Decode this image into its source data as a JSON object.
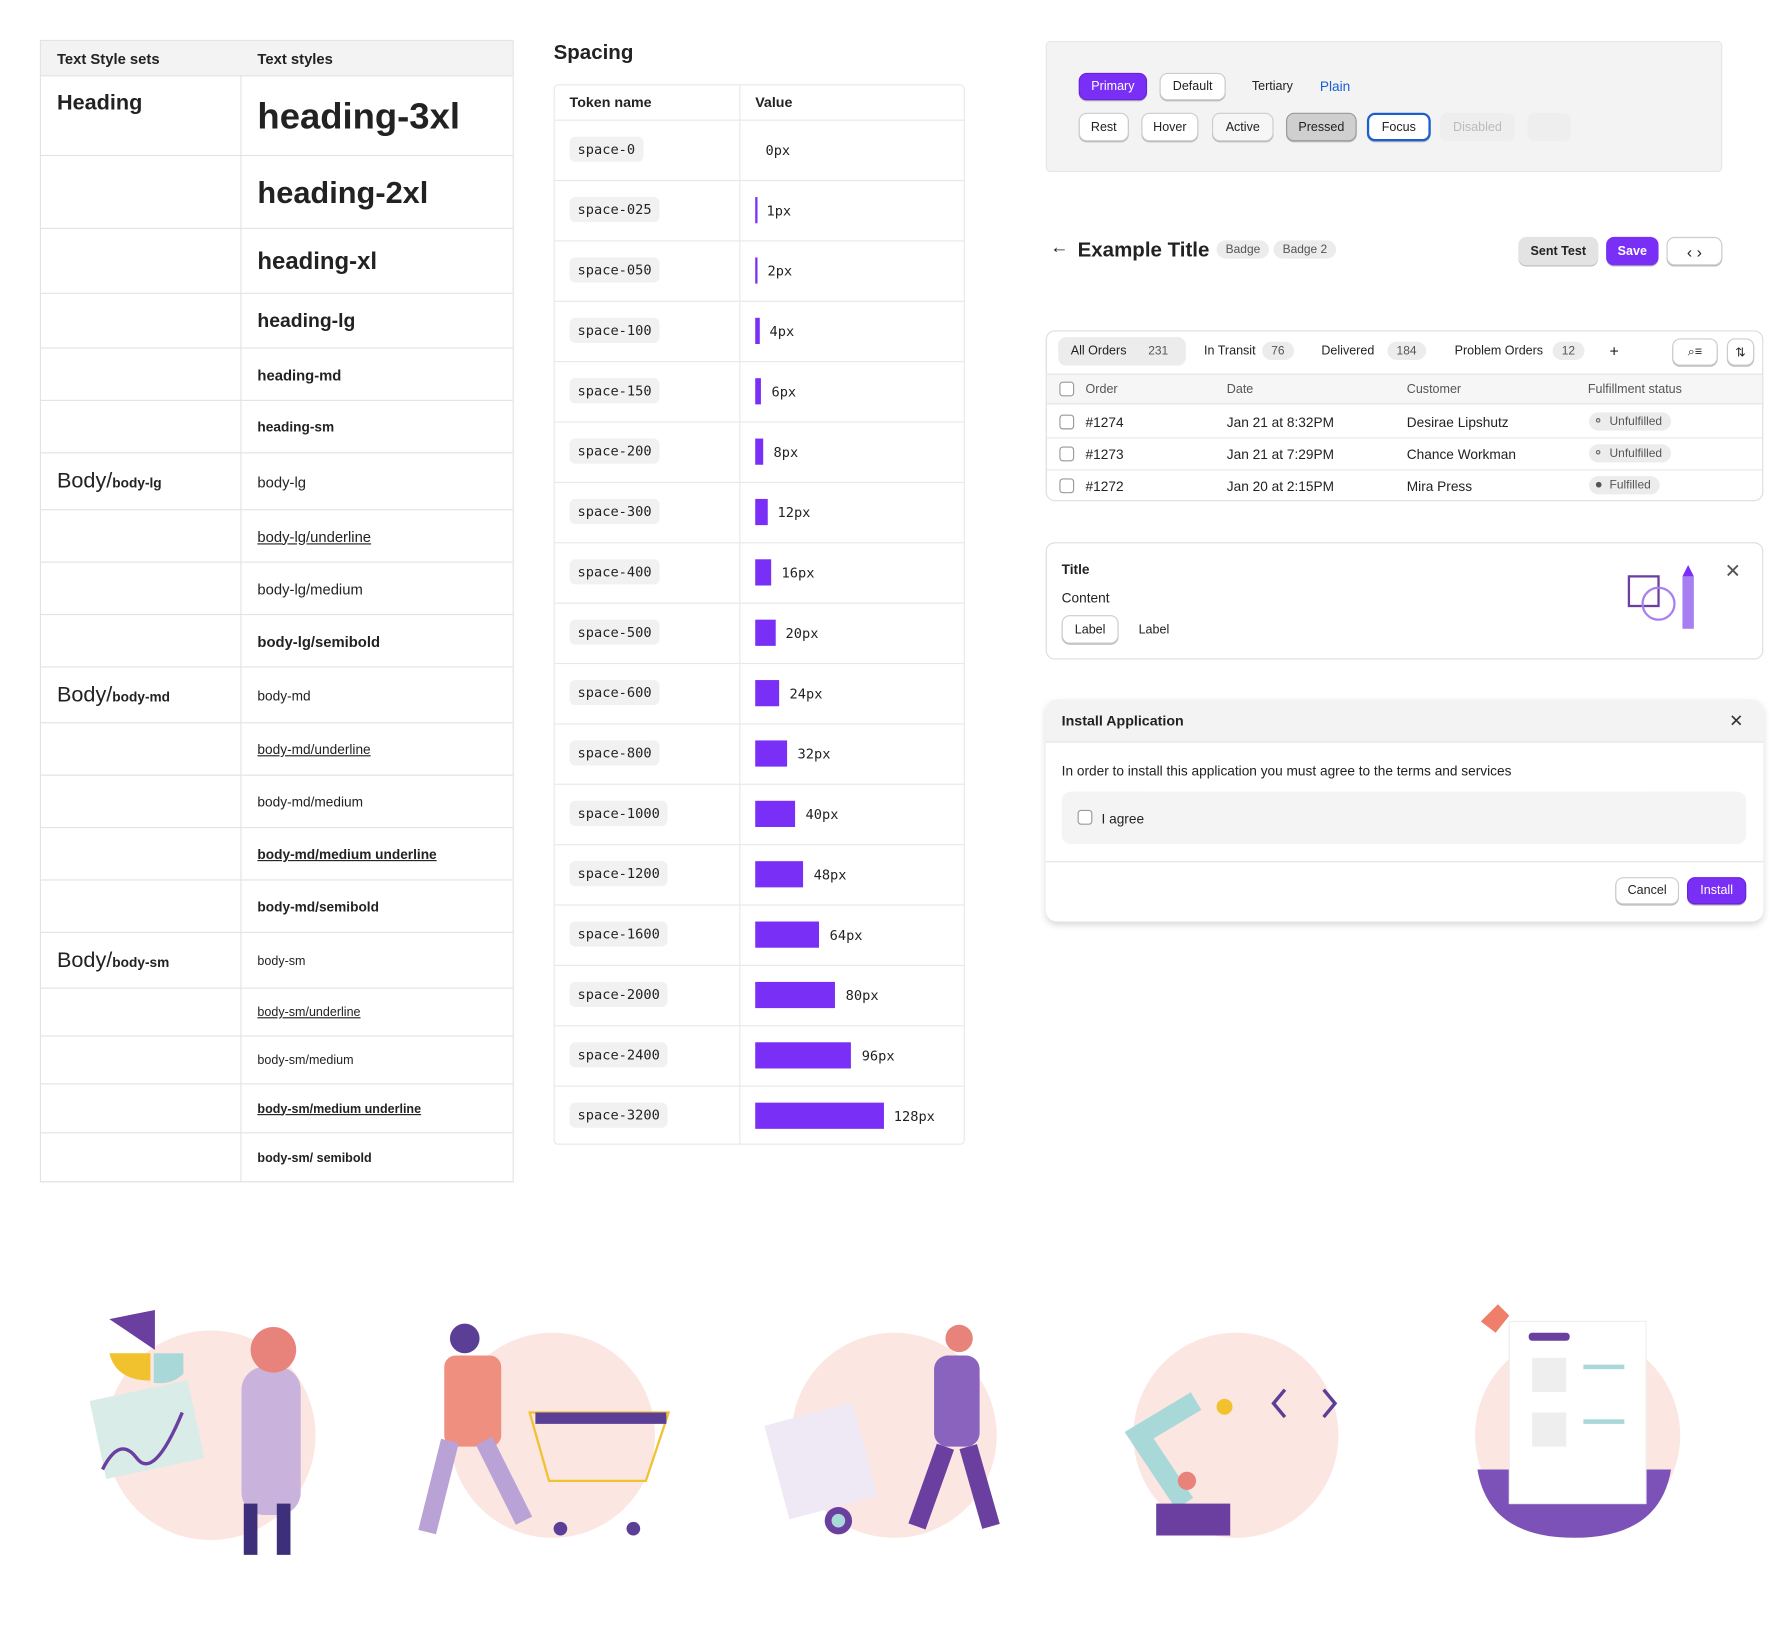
{
  "text_styles": {
    "headers": [
      "Text Style sets",
      "Text styles"
    ],
    "rows": [
      {
        "set": {
          "main": "Heading"
        },
        "style": "heading-3xl"
      },
      {
        "style": "heading-2xl"
      },
      {
        "style": "heading-xl"
      },
      {
        "style": "heading-lg"
      },
      {
        "style": "heading-md"
      },
      {
        "style": "heading-sm"
      },
      {
        "set": {
          "main": "Body/",
          "sub": "body-lg"
        },
        "style": "body-lg"
      },
      {
        "style": "body-lg/underline"
      },
      {
        "style": "body-lg/medium"
      },
      {
        "style": "body-lg/semibold"
      },
      {
        "set": {
          "main": "Body/",
          "sub": "body-md"
        },
        "style": "body-md"
      },
      {
        "style": "body-md/underline"
      },
      {
        "style": "body-md/medium"
      },
      {
        "style": "body-md/medium underline"
      },
      {
        "style": "body-md/semibold"
      },
      {
        "set": {
          "main": "Body/",
          "sub": "body-sm"
        },
        "style": "body-sm"
      },
      {
        "style": "body-sm/underline"
      },
      {
        "style": "body-sm/medium"
      },
      {
        "style": "body-sm/medium underline"
      },
      {
        "style": "body-sm/ semibold"
      }
    ]
  },
  "spacing": {
    "title": "Spacing",
    "headers": [
      "Token name",
      "Value"
    ],
    "rows": [
      {
        "token": "space-0",
        "value": "0px"
      },
      {
        "token": "space-025",
        "value": "1px"
      },
      {
        "token": "space-050",
        "value": "2px"
      },
      {
        "token": "space-100",
        "value": "4px"
      },
      {
        "token": "space-150",
        "value": "6px"
      },
      {
        "token": "space-200",
        "value": "8px"
      },
      {
        "token": "space-300",
        "value": "12px"
      },
      {
        "token": "space-400",
        "value": "16px"
      },
      {
        "token": "space-500",
        "value": "20px"
      },
      {
        "token": "space-600",
        "value": "24px"
      },
      {
        "token": "space-800",
        "value": "32px"
      },
      {
        "token": "space-1000",
        "value": "40px"
      },
      {
        "token": "space-1200",
        "value": "48px"
      },
      {
        "token": "space-1600",
        "value": "64px"
      },
      {
        "token": "space-2000",
        "value": "80px"
      },
      {
        "token": "space-2400",
        "value": "96px"
      },
      {
        "token": "space-3200",
        "value": "128px"
      }
    ]
  },
  "buttons": {
    "variants": [
      "Primary",
      "Default",
      "Tertiary",
      "Plain"
    ],
    "states": [
      "Rest",
      "Hover",
      "Active",
      "Pressed",
      "Focus",
      "Disabled"
    ]
  },
  "page_header": {
    "title": "Example Title",
    "badges": [
      "Badge",
      "Badge 2"
    ],
    "actions": [
      "Sent Test",
      "Save"
    ]
  },
  "orders": {
    "tabs": [
      {
        "label": "All Orders",
        "count": "231"
      },
      {
        "label": "In Transit",
        "count": "76"
      },
      {
        "label": "Delivered",
        "count": "184"
      },
      {
        "label": "Problem Orders",
        "count": "12"
      }
    ],
    "add": "+",
    "columns": [
      "Order",
      "Date",
      "Customer",
      "Fulfillment status"
    ],
    "rows": [
      [
        "#1274",
        "Jan 21 at 8:32PM",
        "Desirae Lipshutz",
        "Unfulfilled"
      ],
      [
        "#1273",
        "Jan 21 at 7:29PM",
        "Chance Workman",
        "Unfulfilled"
      ],
      [
        "#1272",
        "Jan 20 at 2:15PM",
        "Mira Press",
        "Fulfilled"
      ]
    ]
  },
  "card": {
    "title": "Title",
    "content": "Content",
    "buttons": [
      "Label",
      "Label"
    ]
  },
  "modal": {
    "title": "Install Application",
    "body": "In order to install this application you must agree to the terms and services",
    "checkbox": "I agree",
    "actions": [
      "Cancel",
      "Install"
    ]
  }
}
